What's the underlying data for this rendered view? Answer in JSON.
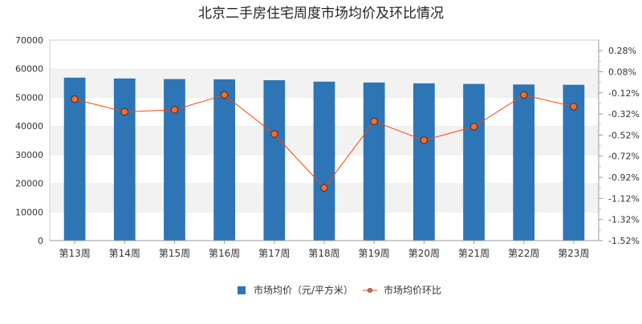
{
  "chart_data": {
    "type": "bar+line",
    "title": "北京二手房住宅周度市场均价及环比情况",
    "categories": [
      "第13周",
      "第14周",
      "第15周",
      "第16周",
      "第17周",
      "第18周",
      "第19周",
      "第20周",
      "第21周",
      "第22周",
      "第23周"
    ],
    "series": [
      {
        "name": "市场均价（元/平方米）",
        "kind": "bar",
        "axis": "left",
        "color": "#2e75b6",
        "values": [
          56900,
          56600,
          56400,
          56300,
          56000,
          55500,
          55200,
          54900,
          54700,
          54500,
          54400
        ]
      },
      {
        "name": "市场均价环比",
        "kind": "line",
        "axis": "right",
        "color": "#ff4500",
        "values": [
          -0.18,
          -0.3,
          -0.28,
          -0.14,
          -0.51,
          -1.02,
          -0.39,
          -0.57,
          -0.44,
          -0.14,
          -0.25
        ]
      }
    ],
    "left_axis": {
      "ylim": [
        0,
        70000
      ],
      "ticks": [
        "0",
        "10000",
        "20000",
        "30000",
        "40000",
        "50000",
        "60000",
        "70000"
      ]
    },
    "right_axis": {
      "ylim": [
        -1.52,
        0.38
      ],
      "ticks": [
        "-1.52%",
        "-1.32%",
        "-1.12%",
        "-0.92%",
        "-0.72%",
        "-0.52%",
        "-0.32%",
        "-0.12%",
        "0.08%",
        "0.28%"
      ]
    },
    "grid": "horizontal-bands",
    "legend_position": "bottom"
  }
}
